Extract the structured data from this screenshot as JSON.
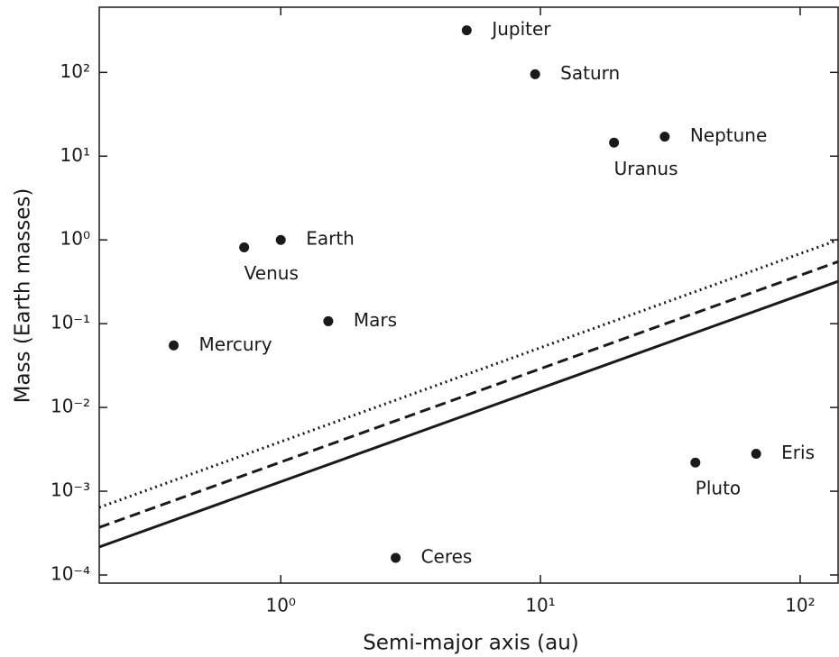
{
  "chart_data": {
    "type": "scatter",
    "xlabel": "Semi-major axis (au)",
    "ylabel": "Mass (Earth masses)",
    "xlog": true,
    "ylog": true,
    "color": "#1a1a1a",
    "xlim": [
      0.2,
      140
    ],
    "ylim": [
      8e-05,
      600
    ],
    "xticks": [
      {
        "value": 1,
        "label": "10⁰"
      },
      {
        "value": 10,
        "label": "10¹"
      },
      {
        "value": 100,
        "label": "10²"
      }
    ],
    "yticks": [
      {
        "value": 0.0001,
        "label": "10⁻⁴"
      },
      {
        "value": 0.001,
        "label": "10⁻³"
      },
      {
        "value": 0.01,
        "label": "10⁻²"
      },
      {
        "value": 0.1,
        "label": "10⁻¹"
      },
      {
        "value": 1,
        "label": "10⁰"
      },
      {
        "value": 10,
        "label": "10¹"
      },
      {
        "value": 100,
        "label": "10²"
      }
    ],
    "labels": [
      "Mercury",
      "Venus",
      "Earth",
      "Mars",
      "Jupiter",
      "Saturn",
      "Uranus",
      "Neptune",
      "Ceres",
      "Pluto",
      "Eris"
    ],
    "x": [
      0.387,
      0.723,
      1,
      1.524,
      5.2,
      9.54,
      19.2,
      30.1,
      2.77,
      39.5,
      67.7
    ],
    "values": [
      0.055,
      0.815,
      1,
      0.107,
      318,
      95,
      14.5,
      17.1,
      0.00016,
      0.0022,
      0.0028
    ],
    "lines": [
      {
        "style": "solid",
        "x": [
          0.2,
          140
        ],
        "values": [
          0.000216,
          0.32
        ]
      },
      {
        "style": "dashed",
        "x": [
          0.2,
          140
        ],
        "values": [
          0.00037,
          0.55
        ]
      },
      {
        "style": "dotted",
        "x": [
          0.2,
          140
        ],
        "values": [
          0.00064,
          1.0
        ]
      }
    ]
  }
}
